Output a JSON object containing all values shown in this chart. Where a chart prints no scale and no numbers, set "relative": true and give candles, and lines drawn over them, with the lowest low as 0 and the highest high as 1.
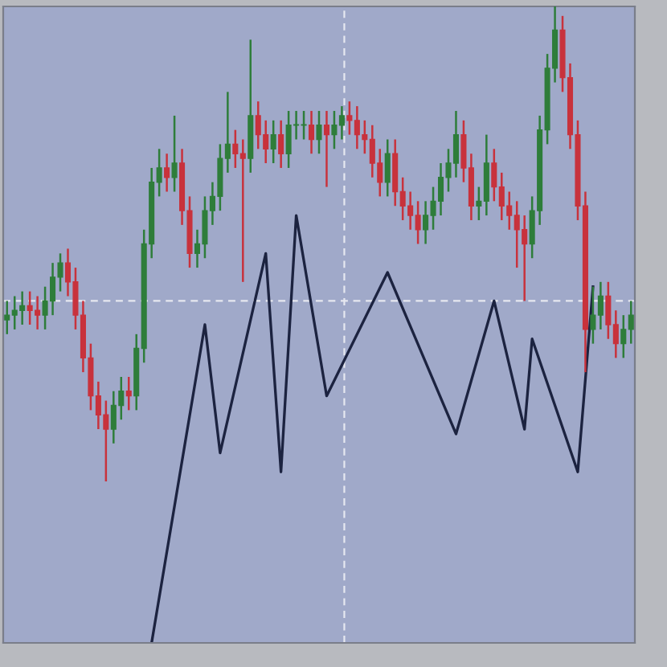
{
  "chart_data": {
    "type": "candlestick",
    "relative": true,
    "categories": [
      null,
      null,
      null,
      null,
      null,
      null,
      null,
      null,
      null,
      null,
      null,
      null,
      null,
      null,
      null,
      null,
      null,
      null,
      null,
      null,
      null,
      null,
      null,
      null,
      null,
      null,
      null,
      null,
      null,
      null,
      null,
      null,
      null,
      null,
      null,
      null,
      null,
      null,
      null,
      null,
      null,
      null,
      null,
      null,
      null,
      null,
      null,
      null,
      null,
      null,
      null,
      null,
      null,
      null,
      null,
      null,
      null,
      null,
      null,
      null,
      null,
      null,
      null,
      null,
      null,
      null,
      null,
      null,
      null,
      null,
      null,
      null,
      null,
      null,
      null,
      null,
      null,
      null,
      null,
      null,
      null,
      null,
      null
    ],
    "ohlc": [
      [
        0.34,
        0.38,
        0.31,
        0.35
      ],
      [
        0.35,
        0.39,
        0.32,
        0.36
      ],
      [
        0.36,
        0.4,
        0.33,
        0.37
      ],
      [
        0.37,
        0.4,
        0.33,
        0.36
      ],
      [
        0.36,
        0.39,
        0.32,
        0.35
      ],
      [
        0.35,
        0.41,
        0.32,
        0.38
      ],
      [
        0.38,
        0.46,
        0.35,
        0.43
      ],
      [
        0.43,
        0.48,
        0.4,
        0.46
      ],
      [
        0.46,
        0.49,
        0.39,
        0.42
      ],
      [
        0.42,
        0.45,
        0.32,
        0.35
      ],
      [
        0.35,
        0.38,
        0.23,
        0.26
      ],
      [
        0.26,
        0.29,
        0.15,
        0.18
      ],
      [
        0.18,
        0.21,
        0.11,
        0.14
      ],
      [
        0.14,
        0.17,
        0,
        0.11
      ],
      [
        0.11,
        0.19,
        0.08,
        0.16
      ],
      [
        0.16,
        0.22,
        0.13,
        0.19
      ],
      [
        0.19,
        0.22,
        0.15,
        0.18
      ],
      [
        0.18,
        0.31,
        0.15,
        0.28
      ],
      [
        0.28,
        0.53,
        0.25,
        0.5
      ],
      [
        0.5,
        0.66,
        0.47,
        0.63
      ],
      [
        0.63,
        0.7,
        0.6,
        0.66
      ],
      [
        0.66,
        0.69,
        0.61,
        0.64
      ],
      [
        0.64,
        0.77,
        0.61,
        0.67
      ],
      [
        0.67,
        0.7,
        0.54,
        0.57
      ],
      [
        0.57,
        0.6,
        0.45,
        0.48
      ],
      [
        0.48,
        0.53,
        0.45,
        0.5
      ],
      [
        0.5,
        0.6,
        0.47,
        0.57
      ],
      [
        0.57,
        0.63,
        0.54,
        0.6
      ],
      [
        0.6,
        0.71,
        0.57,
        0.68
      ],
      [
        0.68,
        0.82,
        0.65,
        0.71
      ],
      [
        0.71,
        0.74,
        0.66,
        0.69
      ],
      [
        0.69,
        0.72,
        0.42,
        0.68
      ],
      [
        0.68,
        0.93,
        0.65,
        0.77
      ],
      [
        0.77,
        0.8,
        0.7,
        0.73
      ],
      [
        0.73,
        0.76,
        0.67,
        0.7
      ],
      [
        0.7,
        0.76,
        0.67,
        0.73
      ],
      [
        0.73,
        0.76,
        0.66,
        0.69
      ],
      [
        0.69,
        0.78,
        0.66,
        0.75
      ],
      [
        0.75,
        0.78,
        0.72,
        0.75
      ],
      [
        0.75,
        0.78,
        0.72,
        0.75
      ],
      [
        0.75,
        0.78,
        0.69,
        0.72
      ],
      [
        0.72,
        0.78,
        0.69,
        0.75
      ],
      [
        0.75,
        0.78,
        0.62,
        0.73
      ],
      [
        0.73,
        0.78,
        0.7,
        0.75
      ],
      [
        0.75,
        0.79,
        0.72,
        0.77
      ],
      [
        0.77,
        0.8,
        0.73,
        0.76
      ],
      [
        0.76,
        0.79,
        0.7,
        0.73
      ],
      [
        0.73,
        0.76,
        0.69,
        0.72
      ],
      [
        0.72,
        0.75,
        0.64,
        0.67
      ],
      [
        0.67,
        0.7,
        0.6,
        0.63
      ],
      [
        0.63,
        0.72,
        0.6,
        0.69
      ],
      [
        0.69,
        0.72,
        0.58,
        0.61
      ],
      [
        0.61,
        0.64,
        0.55,
        0.58
      ],
      [
        0.58,
        0.61,
        0.53,
        0.56
      ],
      [
        0.56,
        0.59,
        0.5,
        0.53
      ],
      [
        0.53,
        0.59,
        0.5,
        0.56
      ],
      [
        0.56,
        0.62,
        0.53,
        0.59
      ],
      [
        0.59,
        0.67,
        0.56,
        0.64
      ],
      [
        0.64,
        0.7,
        0.61,
        0.67
      ],
      [
        0.67,
        0.78,
        0.64,
        0.73
      ],
      [
        0.73,
        0.76,
        0.63,
        0.66
      ],
      [
        0.66,
        0.69,
        0.55,
        0.58
      ],
      [
        0.58,
        0.62,
        0.55,
        0.59
      ],
      [
        0.59,
        0.73,
        0.56,
        0.67
      ],
      [
        0.67,
        0.7,
        0.59,
        0.62
      ],
      [
        0.62,
        0.65,
        0.55,
        0.58
      ],
      [
        0.58,
        0.61,
        0.53,
        0.56
      ],
      [
        0.56,
        0.59,
        0.45,
        0.53
      ],
      [
        0.53,
        0.56,
        0.38,
        0.5
      ],
      [
        0.5,
        0.6,
        0.47,
        0.57
      ],
      [
        0.57,
        0.77,
        0.54,
        0.74
      ],
      [
        0.74,
        0.9,
        0.71,
        0.87
      ],
      [
        0.87,
        1,
        0.84,
        0.95
      ],
      [
        0.95,
        0.98,
        0.82,
        0.85
      ],
      [
        0.85,
        0.88,
        0.7,
        0.73
      ],
      [
        0.73,
        0.76,
        0.55,
        0.58
      ],
      [
        0.58,
        0.61,
        0.23,
        0.32
      ],
      [
        0.32,
        0.41,
        0.29,
        0.35
      ],
      [
        0.35,
        0.42,
        0.32,
        0.39
      ],
      [
        0.39,
        0.42,
        0.3,
        0.33
      ],
      [
        0.33,
        0.36,
        0.26,
        0.29
      ],
      [
        0.29,
        0.35,
        0.26,
        0.32
      ],
      [
        0.32,
        0.38,
        0.29,
        0.35
      ]
    ],
    "series": [
      {
        "type": "line",
        "color": "#1c2340",
        "values": [
          null,
          null,
          null,
          null,
          null,
          null,
          null,
          null,
          null,
          null,
          null,
          null,
          null,
          null,
          null,
          null,
          null,
          null,
          null,
          -0.34,
          null,
          null,
          null,
          null,
          null,
          null,
          0.33,
          null,
          0.06,
          null,
          null,
          null,
          null,
          null,
          0.48,
          null,
          0.02,
          null,
          0.56,
          null,
          null,
          null,
          0.18,
          null,
          null,
          null,
          null,
          null,
          null,
          null,
          0.44,
          null,
          null,
          null,
          null,
          null,
          null,
          null,
          null,
          0.1,
          null,
          null,
          null,
          null,
          0.38,
          null,
          null,
          null,
          0.11,
          0.3,
          null,
          null,
          null,
          null,
          null,
          0.02,
          null,
          0.41,
          null,
          null,
          null,
          null,
          null
        ]
      }
    ],
    "ref_lines": [
      {
        "axis": "y",
        "value": 0.38,
        "color": "#e6e8f0",
        "line_style": "dashed"
      }
    ],
    "grid": false,
    "legend": false
  }
}
